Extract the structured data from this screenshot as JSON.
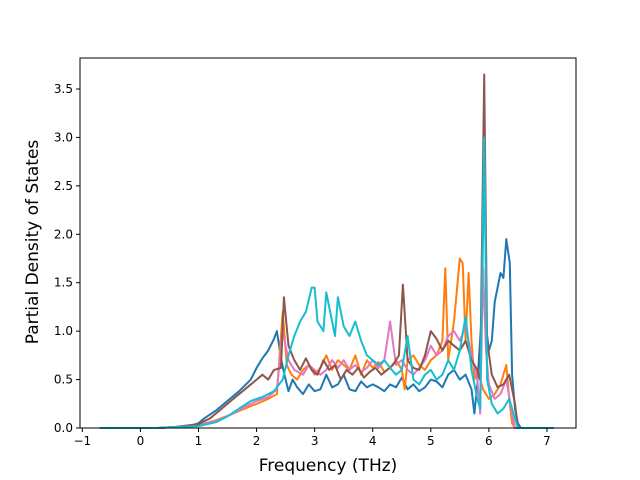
{
  "chart_data": {
    "type": "line",
    "title": "",
    "xlabel": "Frequency (THz)",
    "ylabel": "Partial Density of States",
    "xlim": [
      -1.04,
      7.5
    ],
    "ylim": [
      0,
      3.82
    ],
    "xticks": [
      -1,
      0,
      1,
      2,
      3,
      4,
      5,
      6,
      7
    ],
    "yticks": [
      0.0,
      0.5,
      1.0,
      1.5,
      2.0,
      2.5,
      3.0,
      3.5
    ],
    "xtick_labels": [
      "−1",
      "0",
      "1",
      "2",
      "3",
      "4",
      "5",
      "6",
      "7"
    ],
    "ytick_labels": [
      "0.0",
      "0.5",
      "1.0",
      "1.5",
      "2.0",
      "2.5",
      "3.0",
      "3.5"
    ],
    "grid": false,
    "legend": "none",
    "series": [
      {
        "color": "#1f77b4",
        "points": [
          [
            -0.68,
            0
          ],
          [
            0.3,
            0
          ],
          [
            0.6,
            0.01
          ],
          [
            0.9,
            0.03
          ],
          [
            1.0,
            0.05
          ],
          [
            1.1,
            0.1
          ],
          [
            1.3,
            0.18
          ],
          [
            1.5,
            0.28
          ],
          [
            1.7,
            0.38
          ],
          [
            1.9,
            0.5
          ],
          [
            2.0,
            0.62
          ],
          [
            2.1,
            0.72
          ],
          [
            2.2,
            0.8
          ],
          [
            2.3,
            0.92
          ],
          [
            2.35,
            1.0
          ],
          [
            2.42,
            0.72
          ],
          [
            2.48,
            0.55
          ],
          [
            2.55,
            0.38
          ],
          [
            2.62,
            0.5
          ],
          [
            2.7,
            0.42
          ],
          [
            2.8,
            0.35
          ],
          [
            2.9,
            0.45
          ],
          [
            3.0,
            0.38
          ],
          [
            3.1,
            0.4
          ],
          [
            3.2,
            0.55
          ],
          [
            3.3,
            0.42
          ],
          [
            3.4,
            0.45
          ],
          [
            3.5,
            0.55
          ],
          [
            3.6,
            0.4
          ],
          [
            3.7,
            0.38
          ],
          [
            3.8,
            0.48
          ],
          [
            3.9,
            0.42
          ],
          [
            4.0,
            0.45
          ],
          [
            4.1,
            0.42
          ],
          [
            4.2,
            0.38
          ],
          [
            4.3,
            0.45
          ],
          [
            4.4,
            0.42
          ],
          [
            4.5,
            0.52
          ],
          [
            4.6,
            0.4
          ],
          [
            4.7,
            0.45
          ],
          [
            4.8,
            0.38
          ],
          [
            4.9,
            0.42
          ],
          [
            5.0,
            0.5
          ],
          [
            5.1,
            0.48
          ],
          [
            5.2,
            0.42
          ],
          [
            5.3,
            0.55
          ],
          [
            5.4,
            0.6
          ],
          [
            5.5,
            0.5
          ],
          [
            5.6,
            0.55
          ],
          [
            5.7,
            0.4
          ],
          [
            5.75,
            0.15
          ],
          [
            5.8,
            0.45
          ],
          [
            5.88,
            1.2
          ],
          [
            5.92,
            3.0
          ],
          [
            5.96,
            1.0
          ],
          [
            6.0,
            0.8
          ],
          [
            6.05,
            0.9
          ],
          [
            6.1,
            1.3
          ],
          [
            6.2,
            1.6
          ],
          [
            6.25,
            1.55
          ],
          [
            6.3,
            1.95
          ],
          [
            6.36,
            1.7
          ],
          [
            6.4,
            0.55
          ],
          [
            6.45,
            0.2
          ],
          [
            6.5,
            0.05
          ],
          [
            6.55,
            0
          ],
          [
            7.1,
            0
          ]
        ]
      },
      {
        "color": "#ff7f0e",
        "points": [
          [
            -0.68,
            0
          ],
          [
            0.3,
            0
          ],
          [
            0.6,
            0.01
          ],
          [
            1.0,
            0.03
          ],
          [
            1.3,
            0.08
          ],
          [
            1.6,
            0.15
          ],
          [
            1.8,
            0.2
          ],
          [
            2.0,
            0.25
          ],
          [
            2.2,
            0.3
          ],
          [
            2.35,
            0.35
          ],
          [
            2.45,
            1.2
          ],
          [
            2.52,
            0.65
          ],
          [
            2.6,
            0.55
          ],
          [
            2.7,
            0.5
          ],
          [
            2.8,
            0.6
          ],
          [
            2.9,
            0.65
          ],
          [
            3.0,
            0.55
          ],
          [
            3.1,
            0.62
          ],
          [
            3.2,
            0.75
          ],
          [
            3.3,
            0.6
          ],
          [
            3.4,
            0.7
          ],
          [
            3.5,
            0.65
          ],
          [
            3.6,
            0.6
          ],
          [
            3.7,
            0.75
          ],
          [
            3.8,
            0.55
          ],
          [
            3.9,
            0.7
          ],
          [
            4.0,
            0.62
          ],
          [
            4.1,
            0.68
          ],
          [
            4.2,
            0.58
          ],
          [
            4.3,
            0.62
          ],
          [
            4.4,
            0.7
          ],
          [
            4.5,
            0.6
          ],
          [
            4.55,
            0.4
          ],
          [
            4.6,
            0.7
          ],
          [
            4.7,
            0.75
          ],
          [
            4.8,
            0.65
          ],
          [
            4.9,
            0.6
          ],
          [
            5.0,
            0.7
          ],
          [
            5.1,
            0.75
          ],
          [
            5.2,
            0.9
          ],
          [
            5.25,
            1.65
          ],
          [
            5.3,
            0.7
          ],
          [
            5.4,
            1.1
          ],
          [
            5.5,
            1.75
          ],
          [
            5.55,
            1.7
          ],
          [
            5.6,
            0.9
          ],
          [
            5.65,
            1.6
          ],
          [
            5.7,
            0.9
          ],
          [
            5.75,
            0.5
          ],
          [
            5.8,
            0.6
          ],
          [
            5.9,
            0.4
          ],
          [
            6.0,
            0.3
          ],
          [
            6.1,
            0.35
          ],
          [
            6.2,
            0.45
          ],
          [
            6.3,
            0.65
          ],
          [
            6.35,
            0.3
          ],
          [
            6.4,
            0.05
          ],
          [
            6.45,
            0
          ],
          [
            7.1,
            0
          ]
        ]
      },
      {
        "color": "#e377c2",
        "points": [
          [
            -0.68,
            0
          ],
          [
            0.3,
            0
          ],
          [
            0.6,
            0.01
          ],
          [
            1.0,
            0.03
          ],
          [
            1.3,
            0.07
          ],
          [
            1.6,
            0.15
          ],
          [
            1.8,
            0.22
          ],
          [
            2.0,
            0.28
          ],
          [
            2.2,
            0.32
          ],
          [
            2.35,
            0.4
          ],
          [
            2.45,
            1.0
          ],
          [
            2.55,
            0.7
          ],
          [
            2.65,
            0.6
          ],
          [
            2.8,
            0.55
          ],
          [
            2.9,
            0.65
          ],
          [
            3.0,
            0.6
          ],
          [
            3.1,
            0.55
          ],
          [
            3.2,
            0.6
          ],
          [
            3.3,
            0.7
          ],
          [
            3.4,
            0.62
          ],
          [
            3.5,
            0.7
          ],
          [
            3.6,
            0.6
          ],
          [
            3.7,
            0.65
          ],
          [
            3.8,
            0.58
          ],
          [
            3.9,
            0.62
          ],
          [
            4.0,
            0.7
          ],
          [
            4.1,
            0.62
          ],
          [
            4.2,
            0.7
          ],
          [
            4.3,
            1.1
          ],
          [
            4.4,
            0.65
          ],
          [
            4.5,
            0.7
          ],
          [
            4.6,
            0.6
          ],
          [
            4.7,
            0.55
          ],
          [
            4.8,
            0.62
          ],
          [
            4.9,
            0.7
          ],
          [
            5.0,
            0.85
          ],
          [
            5.1,
            0.75
          ],
          [
            5.2,
            0.8
          ],
          [
            5.3,
            0.95
          ],
          [
            5.4,
            1.0
          ],
          [
            5.5,
            0.9
          ],
          [
            5.6,
            1.05
          ],
          [
            5.7,
            0.75
          ],
          [
            5.8,
            0.5
          ],
          [
            5.85,
            0.15
          ],
          [
            5.9,
            1.65
          ],
          [
            5.95,
            0.8
          ],
          [
            6.0,
            0.45
          ],
          [
            6.1,
            0.3
          ],
          [
            6.2,
            0.35
          ],
          [
            6.3,
            0.5
          ],
          [
            6.4,
            0.15
          ],
          [
            6.45,
            0
          ],
          [
            7.1,
            0
          ]
        ]
      },
      {
        "color": "#8c564b",
        "points": [
          [
            -0.68,
            0
          ],
          [
            0.3,
            0
          ],
          [
            0.6,
            0.01
          ],
          [
            1.0,
            0.04
          ],
          [
            1.2,
            0.1
          ],
          [
            1.4,
            0.2
          ],
          [
            1.6,
            0.3
          ],
          [
            1.8,
            0.4
          ],
          [
            2.0,
            0.5
          ],
          [
            2.1,
            0.55
          ],
          [
            2.2,
            0.5
          ],
          [
            2.3,
            0.6
          ],
          [
            2.42,
            0.62
          ],
          [
            2.47,
            1.35
          ],
          [
            2.55,
            0.85
          ],
          [
            2.65,
            0.7
          ],
          [
            2.75,
            0.6
          ],
          [
            2.85,
            0.72
          ],
          [
            2.95,
            0.6
          ],
          [
            3.05,
            0.55
          ],
          [
            3.15,
            0.7
          ],
          [
            3.25,
            0.6
          ],
          [
            3.35,
            0.65
          ],
          [
            3.45,
            0.5
          ],
          [
            3.55,
            0.6
          ],
          [
            3.65,
            0.55
          ],
          [
            3.75,
            0.62
          ],
          [
            3.85,
            0.52
          ],
          [
            3.95,
            0.58
          ],
          [
            4.05,
            0.62
          ],
          [
            4.15,
            0.55
          ],
          [
            4.25,
            0.6
          ],
          [
            4.35,
            0.65
          ],
          [
            4.45,
            0.75
          ],
          [
            4.52,
            1.48
          ],
          [
            4.6,
            0.7
          ],
          [
            4.7,
            0.62
          ],
          [
            4.8,
            0.6
          ],
          [
            4.9,
            0.75
          ],
          [
            5.0,
            1.0
          ],
          [
            5.1,
            0.92
          ],
          [
            5.2,
            0.8
          ],
          [
            5.3,
            0.9
          ],
          [
            5.4,
            0.85
          ],
          [
            5.5,
            0.8
          ],
          [
            5.6,
            0.9
          ],
          [
            5.7,
            0.7
          ],
          [
            5.8,
            0.6
          ],
          [
            5.85,
            0.5
          ],
          [
            5.92,
            3.65
          ],
          [
            5.97,
            0.9
          ],
          [
            6.05,
            0.55
          ],
          [
            6.15,
            0.42
          ],
          [
            6.25,
            0.45
          ],
          [
            6.35,
            0.55
          ],
          [
            6.45,
            0.25
          ],
          [
            6.5,
            0
          ],
          [
            7.1,
            0
          ]
        ]
      },
      {
        "color": "#17becf",
        "points": [
          [
            -0.68,
            0
          ],
          [
            0.3,
            0
          ],
          [
            0.6,
            0.01
          ],
          [
            1.0,
            0.02
          ],
          [
            1.3,
            0.06
          ],
          [
            1.5,
            0.12
          ],
          [
            1.7,
            0.2
          ],
          [
            1.9,
            0.28
          ],
          [
            2.1,
            0.32
          ],
          [
            2.3,
            0.38
          ],
          [
            2.45,
            0.5
          ],
          [
            2.55,
            0.75
          ],
          [
            2.65,
            0.95
          ],
          [
            2.75,
            1.1
          ],
          [
            2.85,
            1.2
          ],
          [
            2.95,
            1.45
          ],
          [
            3.0,
            1.45
          ],
          [
            3.05,
            1.1
          ],
          [
            3.15,
            1.0
          ],
          [
            3.2,
            1.4
          ],
          [
            3.3,
            1.1
          ],
          [
            3.35,
            0.95
          ],
          [
            3.4,
            1.35
          ],
          [
            3.5,
            1.05
          ],
          [
            3.6,
            0.95
          ],
          [
            3.7,
            1.1
          ],
          [
            3.8,
            0.9
          ],
          [
            3.9,
            0.75
          ],
          [
            4.0,
            0.7
          ],
          [
            4.1,
            0.65
          ],
          [
            4.2,
            0.7
          ],
          [
            4.3,
            0.62
          ],
          [
            4.4,
            0.55
          ],
          [
            4.5,
            0.6
          ],
          [
            4.6,
            0.95
          ],
          [
            4.7,
            0.5
          ],
          [
            4.8,
            0.45
          ],
          [
            4.9,
            0.55
          ],
          [
            5.0,
            0.6
          ],
          [
            5.1,
            0.5
          ],
          [
            5.2,
            0.55
          ],
          [
            5.3,
            0.7
          ],
          [
            5.4,
            0.6
          ],
          [
            5.5,
            0.8
          ],
          [
            5.6,
            1.15
          ],
          [
            5.7,
            0.6
          ],
          [
            5.8,
            0.3
          ],
          [
            5.85,
            0.2
          ],
          [
            5.92,
            3.0
          ],
          [
            5.97,
            0.5
          ],
          [
            6.05,
            0.25
          ],
          [
            6.15,
            0.15
          ],
          [
            6.25,
            0.2
          ],
          [
            6.35,
            0.3
          ],
          [
            6.45,
            0.1
          ],
          [
            6.5,
            0
          ],
          [
            7.1,
            0
          ]
        ]
      }
    ]
  }
}
